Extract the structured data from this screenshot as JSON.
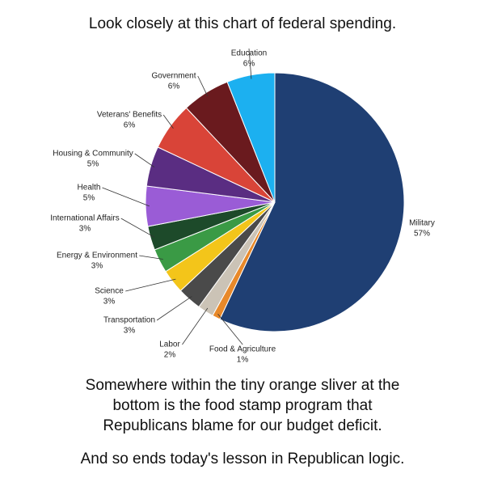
{
  "chart_data": {
    "type": "pie",
    "title": "Look closely at this chart of federal spending.",
    "categories": [
      "Military",
      "Food & Agriculture",
      "Labor",
      "Transportation",
      "Science",
      "Energy & Environment",
      "International Affairs",
      "Health",
      "Housing & Community",
      "Veterans' Benefits",
      "Government",
      "Education"
    ],
    "values": [
      57,
      1,
      2,
      3,
      3,
      3,
      3,
      5,
      5,
      6,
      6,
      6
    ],
    "value_labels": [
      "57%",
      "1%",
      "2%",
      "3%",
      "3%",
      "3%",
      "3%",
      "5%",
      "5%",
      "6%",
      "6%",
      "6%"
    ],
    "colors": [
      "#1f3f73",
      "#e8892a",
      "#cbc3b6",
      "#4a4a4a",
      "#f3c51a",
      "#3a9a45",
      "#1d4a2a",
      "#9a5cd6",
      "#5a2d82",
      "#d94438",
      "#6a1a1e",
      "#1cb0f0"
    ],
    "caption": [
      "Somewhere within the tiny orange sliver at the",
      "bottom is the food stamp program that",
      "Republicans blame for our budget deficit."
    ],
    "closing": "And so ends today's lesson in Republican logic."
  }
}
